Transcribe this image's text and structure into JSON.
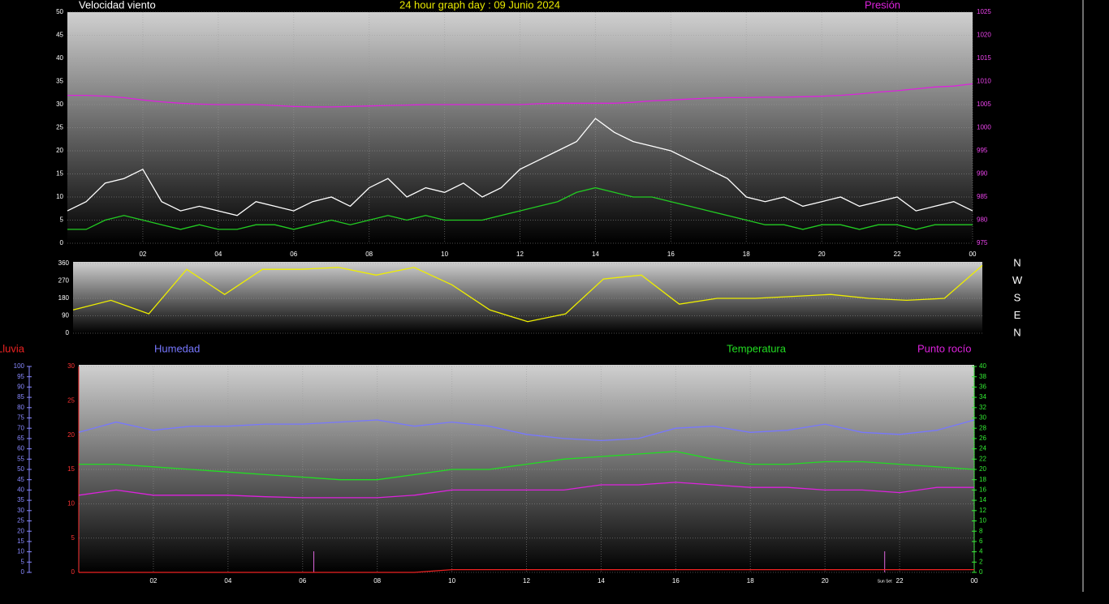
{
  "chart_data": [
    {
      "type": "line",
      "title": "Velocidad viento",
      "subtitle": "24 hour graph day : 09 Junio 2024",
      "y2label": "Presión",
      "x": [
        0,
        0.5,
        1,
        1.5,
        2,
        2.5,
        3,
        3.5,
        4,
        4.5,
        5,
        5.5,
        6,
        6.5,
        7,
        7.5,
        8,
        8.5,
        9,
        9.5,
        10,
        10.5,
        11,
        11.5,
        12,
        12.5,
        13,
        13.5,
        14,
        14.5,
        15,
        15.5,
        16,
        16.5,
        17,
        17.5,
        18,
        18.5,
        19,
        19.5,
        20,
        20.5,
        21,
        21.5,
        22,
        22.5,
        23,
        23.5,
        24
      ],
      "xlim": [
        0,
        24
      ],
      "xticks": [
        {
          "value": 2,
          "label": "02"
        },
        {
          "value": 4,
          "label": "04"
        },
        {
          "value": 6,
          "label": "06"
        },
        {
          "value": 8,
          "label": "08"
        },
        10,
        12,
        14,
        16,
        18,
        20,
        22,
        {
          "value": 24,
          "label": "00"
        }
      ],
      "ylim": [
        0,
        50
      ],
      "yticks": [
        0,
        5,
        10,
        15,
        20,
        25,
        30,
        35,
        40,
        45,
        50
      ],
      "y2lim": [
        975,
        1025
      ],
      "y2ticks": [
        975,
        980,
        985,
        990,
        995,
        1000,
        1005,
        1010,
        1015,
        1020,
        1025
      ],
      "grid": true,
      "series": [
        {
          "color": "#ffffff",
          "values": [
            7,
            9,
            13,
            14,
            16,
            9,
            7,
            8,
            7,
            6,
            9,
            8,
            7,
            9,
            10,
            8,
            12,
            14,
            10,
            12,
            11,
            13,
            10,
            12,
            16,
            18,
            20,
            22,
            27,
            24,
            22,
            21,
            20,
            18,
            16,
            14,
            10,
            9,
            10,
            8,
            9,
            10,
            8,
            9,
            10,
            7,
            8,
            9,
            7
          ]
        },
        {
          "color": "#22cc22",
          "values": [
            3,
            3,
            5,
            6,
            5,
            4,
            3,
            4,
            3,
            3,
            4,
            4,
            3,
            4,
            5,
            4,
            5,
            6,
            5,
            6,
            5,
            5,
            5,
            6,
            7,
            8,
            9,
            11,
            12,
            11,
            10,
            10,
            9,
            8,
            7,
            6,
            5,
            4,
            4,
            3,
            4,
            4,
            3,
            4,
            4,
            3,
            4,
            4,
            4
          ]
        },
        {
          "color": "#dd22dd",
          "axis": "y2",
          "values": [
            1007,
            1007,
            1006.8,
            1006.5,
            1006,
            1005.6,
            1005.3,
            1005.1,
            1005,
            1005,
            1005,
            1004.8,
            1004.6,
            1004.5,
            1004.5,
            1004.6,
            1004.7,
            1004.8,
            1004.9,
            1005,
            1005,
            1005,
            1005,
            1005,
            1005,
            1005.2,
            1005.3,
            1005.3,
            1005.3,
            1005.3,
            1005.5,
            1005.8,
            1006,
            1006.2,
            1006.4,
            1006.5,
            1006.5,
            1006.6,
            1006.6,
            1006.7,
            1006.8,
            1007,
            1007.3,
            1007.7,
            1008,
            1008.4,
            1008.8,
            1009,
            1009.5
          ]
        }
      ]
    },
    {
      "type": "line",
      "x": [
        0,
        1,
        2,
        3,
        4,
        5,
        6,
        7,
        8,
        9,
        10,
        11,
        12,
        13,
        14,
        15,
        16,
        17,
        18,
        19,
        20,
        21,
        22,
        23,
        24
      ],
      "xlim": [
        0,
        24
      ],
      "ylim": [
        0,
        360
      ],
      "yticks": [
        0,
        90,
        180,
        270,
        360
      ],
      "compass": [
        "N",
        "W",
        "S",
        "E",
        "N"
      ],
      "grid": true,
      "series": [
        {
          "color": "#eeee00",
          "values": [
            120,
            170,
            100,
            330,
            200,
            330,
            330,
            340,
            300,
            340,
            250,
            120,
            60,
            100,
            280,
            300,
            150,
            180,
            180,
            190,
            200,
            180,
            170,
            180,
            350
          ]
        }
      ]
    },
    {
      "type": "line",
      "x": [
        0,
        1,
        2,
        3,
        4,
        5,
        6,
        7,
        8,
        9,
        10,
        11,
        12,
        13,
        14,
        15,
        16,
        17,
        18,
        19,
        20,
        21,
        22,
        23,
        24
      ],
      "xlim": [
        0,
        24
      ],
      "xticks": [
        {
          "value": 2,
          "label": "02"
        },
        {
          "value": 4,
          "label": "04"
        },
        {
          "value": 6,
          "label": "06"
        },
        {
          "value": 8,
          "label": "08"
        },
        10,
        12,
        14,
        16,
        18,
        20,
        22,
        {
          "value": 24,
          "label": "00"
        }
      ],
      "ylim": [
        0,
        30
      ],
      "yticks": [
        0,
        5,
        10,
        15,
        20,
        25,
        30
      ],
      "y2lim": [
        0,
        40
      ],
      "y2ticks": [
        0,
        2,
        4,
        6,
        8,
        10,
        12,
        14,
        16,
        18,
        20,
        22,
        24,
        26,
        28,
        30,
        32,
        34,
        36,
        38,
        40
      ],
      "y3lim": [
        0,
        100
      ],
      "y3ticks": [
        0,
        5,
        10,
        15,
        20,
        25,
        30,
        35,
        40,
        45,
        50,
        55,
        60,
        65,
        70,
        75,
        80,
        85,
        90,
        95,
        100
      ],
      "grid": true,
      "annotations": [
        {
          "x": 6.3
        },
        {
          "x": 21.6,
          "label": "Sun Set"
        }
      ],
      "series": [
        {
          "name": "Lluvia",
          "color": "#ee2222",
          "values": [
            0,
            0,
            0,
            0,
            0,
            0,
            0,
            0,
            0,
            0,
            0.4,
            0.4,
            0.4,
            0.4,
            0.4,
            0.4,
            0.4,
            0.4,
            0.4,
            0.4,
            0.4,
            0.4,
            0.4,
            0.4,
            0.4
          ]
        },
        {
          "name": "Humedad",
          "color": "#7777ff",
          "axis": "y3",
          "values": [
            68,
            73,
            69,
            71,
            71,
            72,
            72,
            73,
            74,
            71,
            73,
            71,
            67,
            65,
            64,
            65,
            70,
            71,
            68,
            69,
            72,
            68,
            67,
            69,
            74
          ]
        },
        {
          "name": "Temperatura",
          "color": "#22dd22",
          "axis": "y2",
          "values": [
            21,
            21,
            20.5,
            20,
            19.5,
            19,
            18.5,
            18,
            18,
            19,
            20,
            20,
            21,
            22,
            22.5,
            23,
            23.5,
            22,
            21,
            21,
            21.5,
            21.5,
            21,
            20.5,
            20
          ]
        },
        {
          "name": "Punto rocío",
          "color": "#dd22dd",
          "axis": "y2",
          "values": [
            15,
            16,
            15,
            15,
            15,
            14.7,
            14.5,
            14.5,
            14.5,
            15,
            16,
            16,
            16,
            16,
            17,
            17,
            17.5,
            17,
            16.5,
            16.5,
            16,
            16,
            15.5,
            16.5,
            16.5
          ]
        }
      ]
    }
  ]
}
